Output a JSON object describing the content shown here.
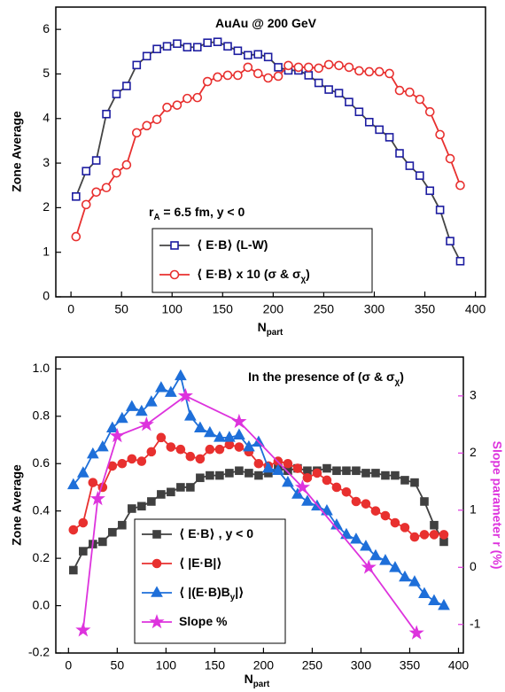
{
  "chart_data": [
    {
      "type": "line",
      "annotations": [
        [
          {
            "text": "AuAu @ 200 GeV"
          }
        ],
        [
          {
            "text": "r"
          },
          {
            "sub": "A"
          },
          {
            "text": " = 6.5 fm, y < 0"
          }
        ]
      ],
      "xlabel": [
        {
          "text": "N"
        },
        {
          "sub": "part"
        }
      ],
      "ylabel": "Zone Average",
      "xlim": [
        -15,
        410
      ],
      "xticks": [
        0,
        50,
        100,
        150,
        200,
        250,
        300,
        350,
        400
      ],
      "ylim": [
        0,
        6.5
      ],
      "yticks": [
        0,
        1,
        2,
        3,
        4,
        5,
        6
      ],
      "x": [
        5,
        15,
        25,
        35,
        45,
        55,
        65,
        75,
        85,
        95,
        105,
        115,
        125,
        135,
        145,
        155,
        165,
        175,
        185,
        195,
        205,
        215,
        225,
        235,
        245,
        255,
        265,
        275,
        285,
        295,
        305,
        315,
        325,
        335,
        345,
        355,
        365,
        375,
        385
      ],
      "series": [
        {
          "name": [
            {
              "text": "⟨ E·B⟩ (L-W)"
            }
          ],
          "color": "#1c1ca0",
          "line_color": "#444444",
          "marker": "square",
          "filled": false,
          "values": [
            2.25,
            2.82,
            3.06,
            4.1,
            4.55,
            4.73,
            5.2,
            5.4,
            5.56,
            5.62,
            5.68,
            5.6,
            5.6,
            5.7,
            5.72,
            5.62,
            5.52,
            5.42,
            5.44,
            5.38,
            5.15,
            5.08,
            5.08,
            4.97,
            4.8,
            4.65,
            4.57,
            4.37,
            4.15,
            3.92,
            3.75,
            3.58,
            3.22,
            2.94,
            2.72,
            2.38,
            1.95,
            1.25,
            0.8
          ]
        },
        {
          "name": [
            {
              "text": "⟨ E·B⟩ x 10 (σ & σ"
            },
            {
              "sub": "χ"
            },
            {
              "text": ")"
            }
          ],
          "color": "#e8302f",
          "line_color": "#e8302f",
          "marker": "circle",
          "filled": false,
          "values": [
            1.35,
            2.07,
            2.35,
            2.45,
            2.78,
            2.96,
            3.68,
            3.84,
            3.98,
            4.25,
            4.3,
            4.45,
            4.47,
            4.83,
            4.93,
            4.97,
            4.97,
            5.15,
            5.01,
            4.91,
            4.95,
            5.19,
            5.15,
            5.15,
            5.13,
            5.21,
            5.19,
            5.15,
            5.07,
            5.05,
            5.05,
            5.01,
            4.63,
            4.59,
            4.43,
            4.15,
            3.64,
            3.1,
            2.5
          ]
        }
      ]
    },
    {
      "type": "line",
      "annotations": [
        [
          {
            "text": "In the presence of (σ & σ"
          },
          {
            "sub": "χ"
          },
          {
            "text": ")"
          }
        ]
      ],
      "xlabel": [
        {
          "text": "N"
        },
        {
          "sub": "part"
        }
      ],
      "ylabel": "Zone Average",
      "y2label": "Slope parameter r (%)",
      "y2color": "#dd33dd",
      "xlim": [
        -13,
        405
      ],
      "xticks": [
        0,
        50,
        100,
        150,
        200,
        250,
        300,
        350,
        400
      ],
      "ylim": [
        -0.2,
        1.05
      ],
      "yticks": [
        -0.2,
        {
          "value": 0,
          "label": "0.0"
        },
        0.2,
        0.4,
        0.6,
        0.8,
        {
          "value": 1,
          "label": "1.0"
        }
      ],
      "y2lim": [
        -1.5,
        3.68
      ],
      "y2ticks": [
        -1,
        0,
        1,
        2,
        3
      ],
      "x": [
        5,
        15,
        25,
        35,
        45,
        55,
        65,
        75,
        85,
        95,
        105,
        115,
        125,
        135,
        145,
        155,
        165,
        175,
        185,
        195,
        205,
        215,
        225,
        235,
        245,
        255,
        265,
        275,
        285,
        295,
        305,
        315,
        325,
        335,
        345,
        355,
        365,
        375,
        385
      ],
      "series": [
        {
          "name": [
            {
              "text": "⟨ E·B⟩ , y < 0"
            }
          ],
          "color": "#404040",
          "line_color": "#404040",
          "marker": "square",
          "filled": true,
          "values": [
            0.15,
            0.23,
            0.26,
            0.27,
            0.31,
            0.34,
            0.41,
            0.42,
            0.44,
            0.47,
            0.48,
            0.5,
            0.5,
            0.54,
            0.55,
            0.55,
            0.56,
            0.57,
            0.56,
            0.55,
            0.56,
            0.58,
            0.57,
            0.58,
            0.57,
            0.57,
            0.58,
            0.57,
            0.57,
            0.57,
            0.56,
            0.56,
            0.55,
            0.55,
            0.53,
            0.52,
            0.44,
            0.34,
            0.27
          ]
        },
        {
          "name": [
            {
              "text": "⟨ |E·B|⟩"
            }
          ],
          "color": "#e8302f",
          "line_color": "#e8302f",
          "marker": "circle",
          "filled": true,
          "values": [
            0.32,
            0.35,
            0.52,
            0.5,
            0.59,
            0.6,
            0.62,
            0.61,
            0.65,
            0.71,
            0.67,
            0.66,
            0.63,
            0.62,
            0.66,
            0.66,
            0.68,
            0.67,
            0.65,
            0.6,
            0.59,
            0.61,
            0.6,
            0.58,
            0.54,
            0.56,
            0.53,
            0.5,
            0.48,
            0.44,
            0.43,
            0.4,
            0.38,
            0.35,
            0.33,
            0.29,
            0.3,
            0.3,
            0.3
          ]
        },
        {
          "name": [
            {
              "text": "⟨ |(E·B)B"
            },
            {
              "sub": "y"
            },
            {
              "text": "|⟩"
            }
          ],
          "color": "#1e6fd9",
          "line_color": "#1e6fd9",
          "marker": "triangle",
          "filled": true,
          "values": [
            0.51,
            0.56,
            0.64,
            0.67,
            0.75,
            0.79,
            0.84,
            0.82,
            0.86,
            0.92,
            0.9,
            0.97,
            0.8,
            0.75,
            0.73,
            0.71,
            0.71,
            0.72,
            0.67,
            0.69,
            0.58,
            0.57,
            0.52,
            0.47,
            0.44,
            0.42,
            0.4,
            0.34,
            0.3,
            0.28,
            0.25,
            0.21,
            0.19,
            0.16,
            0.12,
            0.1,
            0.05,
            0.02,
            0
          ]
        },
        {
          "name": [
            {
              "text": "Slope %"
            }
          ],
          "color": "#dd33dd",
          "line_color": "#dd33dd",
          "marker": "star",
          "filled": true,
          "axis": "y2",
          "x": [
            15,
            30,
            50,
            80,
            120,
            175,
            240,
            308,
            357
          ],
          "values": [
            -1.1,
            1.2,
            2.3,
            2.5,
            3.0,
            2.55,
            1.4,
            0.0,
            -1.15
          ]
        }
      ]
    }
  ]
}
